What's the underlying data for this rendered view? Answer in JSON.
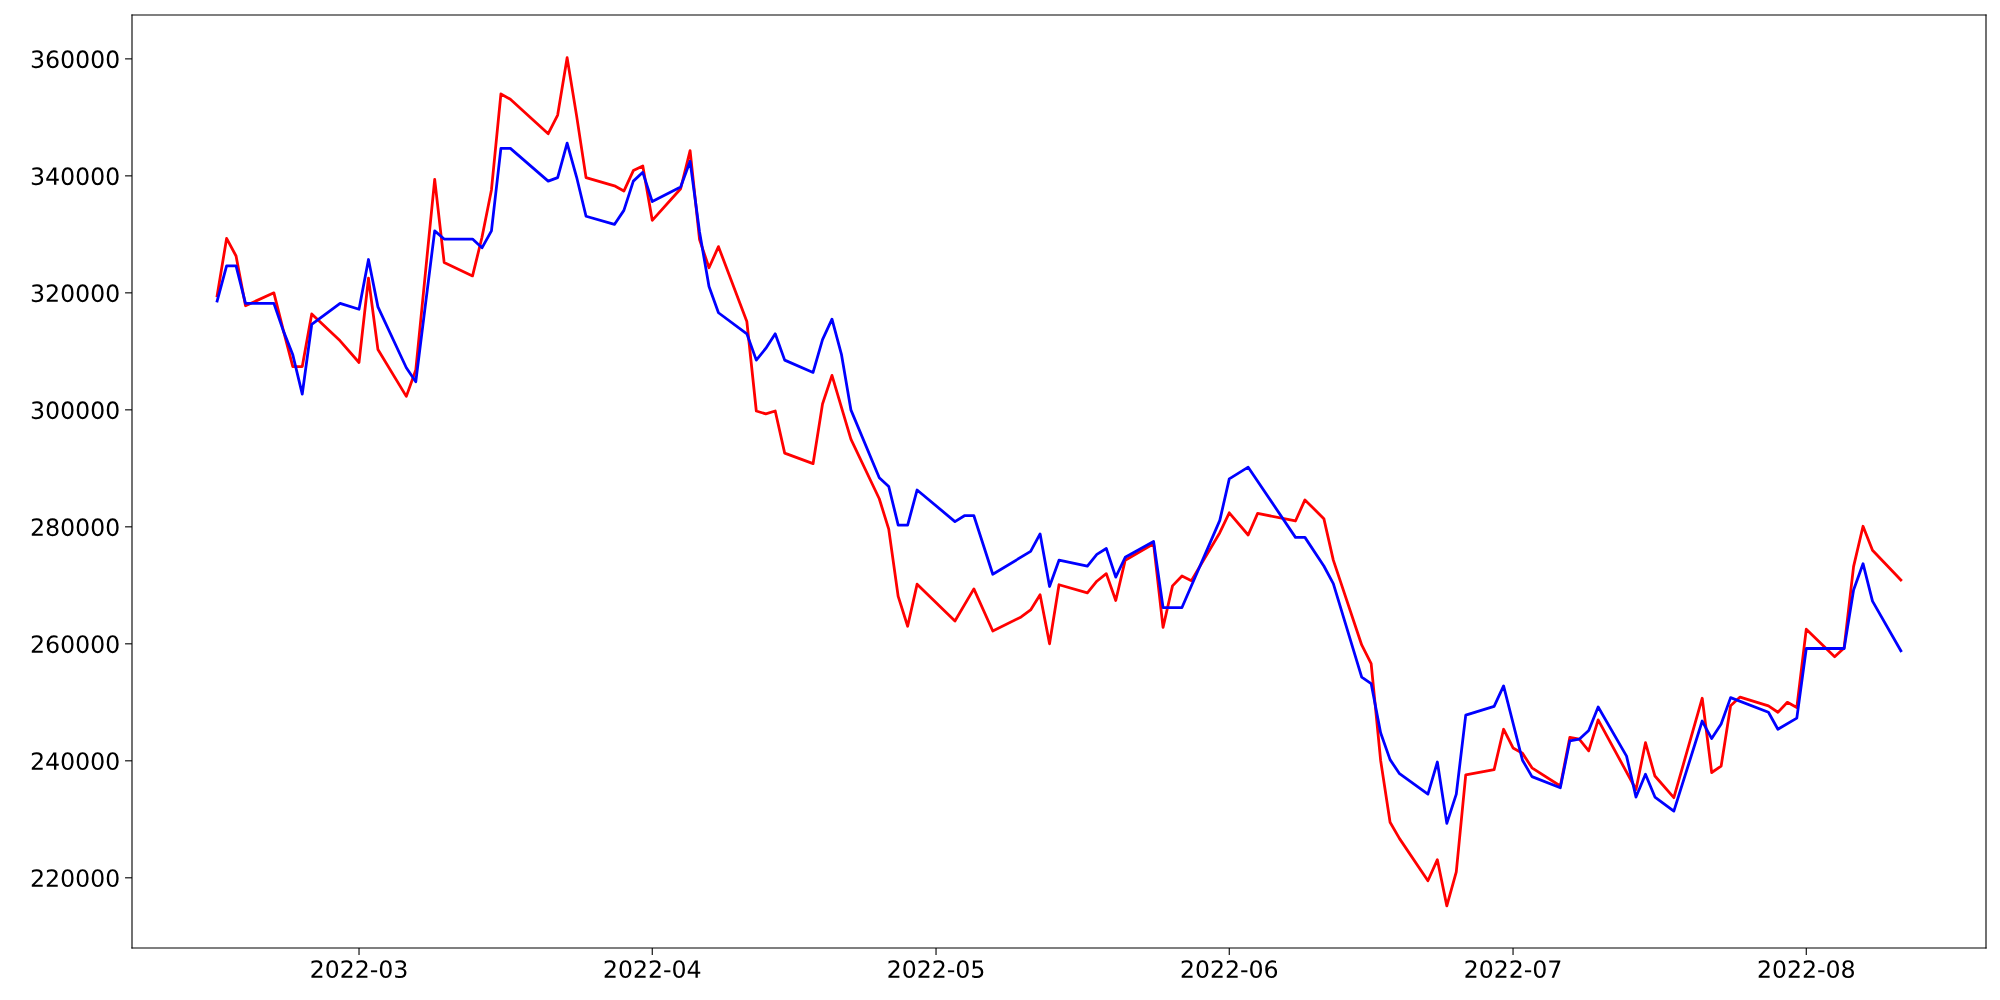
{
  "chart_data": {
    "type": "line",
    "xlim": [
      "2022-02-05",
      "2022-08-20"
    ],
    "xticks": [
      {
        "value": "2022-03-01",
        "label": "2022-03"
      },
      {
        "value": "2022-04-01",
        "label": "2022-04"
      },
      {
        "value": "2022-05-01",
        "label": "2022-05"
      },
      {
        "value": "2022-06-01",
        "label": "2022-06"
      },
      {
        "value": "2022-07-01",
        "label": "2022-07"
      },
      {
        "value": "2022-08-01",
        "label": "2022-08"
      }
    ],
    "ylim": [
      208000,
      367500
    ],
    "yticks": [
      220000,
      240000,
      260000,
      280000,
      300000,
      320000,
      340000,
      360000
    ],
    "marker": "none",
    "line_style": "solid",
    "series": [
      {
        "color": "#ff0000",
        "x": [
          "2022-02-14",
          "2022-02-15",
          "2022-02-16",
          "2022-02-17",
          "2022-02-20",
          "2022-02-21",
          "2022-02-22",
          "2022-02-23",
          "2022-02-24",
          "2022-02-27",
          "2022-03-01",
          "2022-03-02",
          "2022-03-03",
          "2022-03-06",
          "2022-03-07",
          "2022-03-09",
          "2022-03-10",
          "2022-03-13",
          "2022-03-14",
          "2022-03-15",
          "2022-03-16",
          "2022-03-17",
          "2022-03-21",
          "2022-03-22",
          "2022-03-23",
          "2022-03-24",
          "2022-03-25",
          "2022-03-28",
          "2022-03-29",
          "2022-03-30",
          "2022-03-31",
          "2022-04-01",
          "2022-04-04",
          "2022-04-05",
          "2022-04-06",
          "2022-04-07",
          "2022-04-08",
          "2022-04-11",
          "2022-04-12",
          "2022-04-13",
          "2022-04-14",
          "2022-04-15",
          "2022-04-18",
          "2022-04-19",
          "2022-04-20",
          "2022-04-22",
          "2022-04-25",
          "2022-04-26",
          "2022-04-27",
          "2022-04-28",
          "2022-04-29",
          "2022-05-03",
          "2022-05-05",
          "2022-05-07",
          "2022-05-10",
          "2022-05-11",
          "2022-05-12",
          "2022-05-13",
          "2022-05-14",
          "2022-05-17",
          "2022-05-18",
          "2022-05-19",
          "2022-05-20",
          "2022-05-21",
          "2022-05-24",
          "2022-05-25",
          "2022-05-26",
          "2022-05-27",
          "2022-05-28",
          "2022-05-31",
          "2022-06-01",
          "2022-06-03",
          "2022-06-04",
          "2022-06-08",
          "2022-06-09",
          "2022-06-11",
          "2022-06-12",
          "2022-06-15",
          "2022-06-16",
          "2022-06-17",
          "2022-06-18",
          "2022-06-19",
          "2022-06-22",
          "2022-06-23",
          "2022-06-24",
          "2022-06-25",
          "2022-06-26",
          "2022-06-29",
          "2022-06-30",
          "2022-07-01",
          "2022-07-02",
          "2022-07-03",
          "2022-07-06",
          "2022-07-07",
          "2022-07-08",
          "2022-07-09",
          "2022-07-10",
          "2022-07-14",
          "2022-07-15",
          "2022-07-16",
          "2022-07-18",
          "2022-07-21",
          "2022-07-22",
          "2022-07-23",
          "2022-07-24",
          "2022-07-25",
          "2022-07-28",
          "2022-07-29",
          "2022-07-30",
          "2022-07-31",
          "2022-08-01",
          "2022-08-04",
          "2022-08-05",
          "2022-08-06",
          "2022-08-07",
          "2022-08-08",
          "2022-08-11"
        ],
        "values": [
          319500,
          329300,
          326300,
          317800,
          320000,
          313600,
          307400,
          307400,
          316400,
          311800,
          308100,
          322500,
          310300,
          302300,
          306800,
          339400,
          325200,
          322900,
          329500,
          337600,
          354000,
          353100,
          347200,
          350400,
          360200,
          350300,
          339700,
          338300,
          337400,
          340900,
          341700,
          332400,
          337800,
          344300,
          329100,
          324300,
          327900,
          315100,
          299800,
          299300,
          299800,
          292600,
          290800,
          301000,
          305900,
          295000,
          284800,
          279600,
          268100,
          263000,
          270200,
          263900,
          269400,
          262200,
          264600,
          265800,
          268400,
          260000,
          270100,
          268700,
          270700,
          272000,
          267400,
          274300,
          277100,
          262800,
          269900,
          271600,
          270800,
          279000,
          282400,
          278600,
          282300,
          281000,
          284600,
          281400,
          274300,
          259800,
          256600,
          240100,
          229500,
          226700,
          219500,
          223100,
          215200,
          221000,
          237600,
          238500,
          245400,
          242200,
          241300,
          238800,
          235700,
          244000,
          243700,
          241700,
          247000,
          235100,
          243100,
          237400,
          233700,
          250700,
          238000,
          239100,
          249400,
          250900,
          249400,
          248300,
          250000,
          249100,
          262500,
          257800,
          259300,
          273200,
          280100,
          276000,
          270900
        ]
      },
      {
        "color": "#0000ff",
        "x": [
          "2022-02-14",
          "2022-02-15",
          "2022-02-16",
          "2022-02-17",
          "2022-02-20",
          "2022-02-21",
          "2022-02-22",
          "2022-02-23",
          "2022-02-24",
          "2022-02-27",
          "2022-03-01",
          "2022-03-02",
          "2022-03-03",
          "2022-03-06",
          "2022-03-07",
          "2022-03-09",
          "2022-03-10",
          "2022-03-13",
          "2022-03-14",
          "2022-03-15",
          "2022-03-16",
          "2022-03-17",
          "2022-03-21",
          "2022-03-22",
          "2022-03-23",
          "2022-03-24",
          "2022-03-25",
          "2022-03-28",
          "2022-03-29",
          "2022-03-30",
          "2022-03-31",
          "2022-04-01",
          "2022-04-04",
          "2022-04-05",
          "2022-04-06",
          "2022-04-07",
          "2022-04-08",
          "2022-04-11",
          "2022-04-12",
          "2022-04-13",
          "2022-04-14",
          "2022-04-15",
          "2022-04-18",
          "2022-04-19",
          "2022-04-20",
          "2022-04-21",
          "2022-04-22",
          "2022-04-25",
          "2022-04-26",
          "2022-04-27",
          "2022-04-28",
          "2022-04-29",
          "2022-05-03",
          "2022-05-04",
          "2022-05-05",
          "2022-05-07",
          "2022-05-11",
          "2022-05-12",
          "2022-05-13",
          "2022-05-14",
          "2022-05-17",
          "2022-05-18",
          "2022-05-19",
          "2022-05-20",
          "2022-05-21",
          "2022-05-24",
          "2022-05-25",
          "2022-05-27",
          "2022-05-31",
          "2022-06-01",
          "2022-06-03",
          "2022-06-08",
          "2022-06-09",
          "2022-06-11",
          "2022-06-12",
          "2022-06-15",
          "2022-06-16",
          "2022-06-17",
          "2022-06-18",
          "2022-06-19",
          "2022-06-22",
          "2022-06-23",
          "2022-06-24",
          "2022-06-25",
          "2022-06-26",
          "2022-06-29",
          "2022-06-30",
          "2022-07-02",
          "2022-07-03",
          "2022-07-06",
          "2022-07-07",
          "2022-07-08",
          "2022-07-09",
          "2022-07-10",
          "2022-07-13",
          "2022-07-14",
          "2022-07-15",
          "2022-07-16",
          "2022-07-18",
          "2022-07-21",
          "2022-07-22",
          "2022-07-23",
          "2022-07-24",
          "2022-07-28",
          "2022-07-29",
          "2022-07-31",
          "2022-08-01",
          "2022-08-05",
          "2022-08-06",
          "2022-08-07",
          "2022-08-08",
          "2022-08-11"
        ],
        "values": [
          318600,
          324600,
          324600,
          318200,
          318200,
          313500,
          309400,
          302700,
          314600,
          318200,
          317200,
          325700,
          317600,
          307200,
          304800,
          330600,
          329200,
          329200,
          327700,
          330600,
          344700,
          344700,
          339100,
          339700,
          345600,
          339800,
          333100,
          331700,
          334100,
          339100,
          340600,
          335600,
          338100,
          342500,
          330400,
          321100,
          316600,
          313000,
          308500,
          310500,
          313000,
          308500,
          306400,
          312000,
          315500,
          309500,
          300000,
          288400,
          286900,
          280300,
          280300,
          286300,
          280900,
          281900,
          281900,
          271900,
          275800,
          278800,
          269800,
          274300,
          273300,
          275300,
          276300,
          271400,
          274800,
          277500,
          266200,
          266200,
          281100,
          288200,
          290200,
          278200,
          278200,
          273300,
          270300,
          254300,
          253200,
          244800,
          240200,
          237800,
          234300,
          239800,
          229300,
          234300,
          247800,
          249300,
          252800,
          240100,
          237300,
          235400,
          243400,
          243700,
          245200,
          249200,
          240800,
          233800,
          237700,
          233800,
          231400,
          246800,
          243800,
          246300,
          250800,
          248300,
          245400,
          247300,
          259200,
          259200,
          269200,
          273700,
          267300,
          258800
        ]
      }
    ]
  }
}
